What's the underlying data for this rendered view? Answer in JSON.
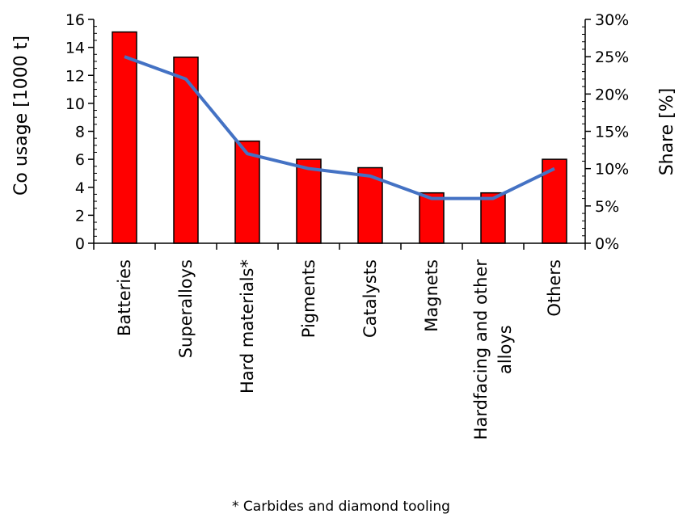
{
  "chart_data": {
    "type": "bar",
    "categories": [
      "Batteries",
      "Superalloys",
      "Hard materials*",
      "Pigments",
      "Catalysts",
      "Magnets",
      "Hardfacing and other alloys",
      "Others"
    ],
    "category_lines": [
      [
        "Batteries"
      ],
      [
        "Superalloys"
      ],
      [
        "Hard materials*"
      ],
      [
        "Pigments"
      ],
      [
        "Catalysts"
      ],
      [
        "Magnets"
      ],
      [
        "Hardfacing and other",
        "alloys"
      ],
      [
        "Others"
      ]
    ],
    "series": [
      {
        "name": "",
        "type": "bar",
        "axis": "left",
        "values": [
          15.1,
          13.3,
          7.3,
          6.0,
          5.4,
          3.6,
          3.6,
          6.0
        ]
      },
      {
        "name": "",
        "type": "line",
        "axis": "right",
        "values": [
          25,
          22,
          12,
          10,
          9,
          6,
          6,
          10
        ]
      }
    ],
    "ylabel": "Co usage [1000 t]",
    "ylim": [
      0,
      16
    ],
    "yticks": [
      "0",
      "2",
      "4",
      "6",
      "8",
      "10",
      "12",
      "14",
      "16"
    ],
    "ytick_values": [
      0,
      2,
      4,
      6,
      8,
      10,
      12,
      14,
      16
    ],
    "y2label": "Share [%]",
    "y2lim": [
      0,
      30
    ],
    "y2ticks": [
      "0%",
      "5%",
      "10%",
      "15%",
      "20%",
      "25%",
      "30%"
    ],
    "y2tick_values": [
      0,
      5,
      10,
      15,
      20,
      25,
      30
    ],
    "grid": false,
    "legend": "none",
    "footnote": "* Carbides and diamond tooling",
    "colors": {
      "bar": "#ff0000",
      "bar_edge": "#000000",
      "line": "#4472c4"
    }
  }
}
